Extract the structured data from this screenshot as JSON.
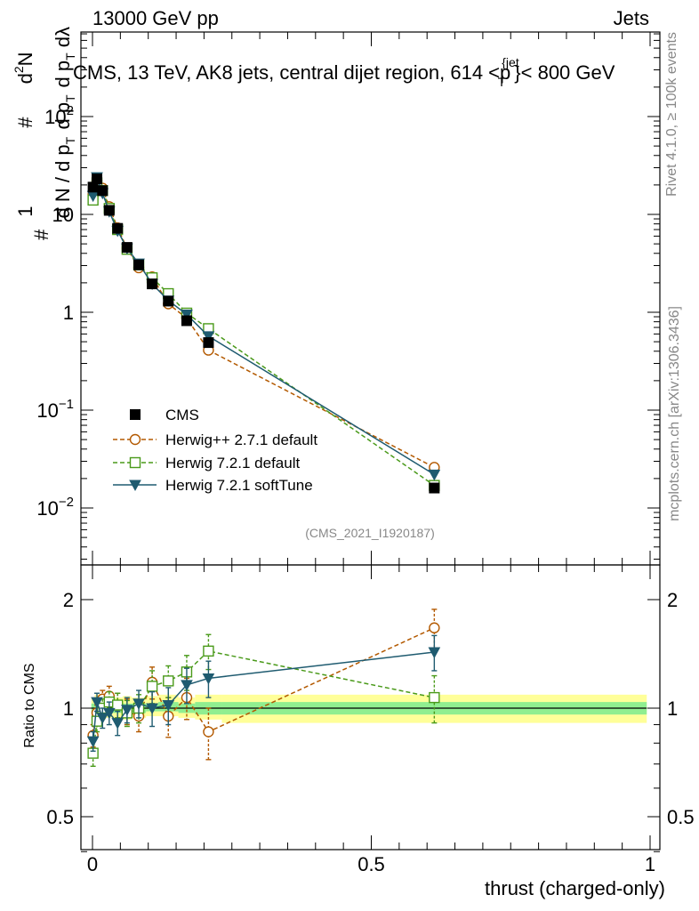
{
  "header": {
    "left": "13000 GeV pp",
    "right": "Jets"
  },
  "side": {
    "rivet": "Rivet 4.1.0, ≥ 100k events",
    "mcplots": "mcplots.cern.ch [arXiv:1306.3436]"
  },
  "colors": {
    "cms": "#000000",
    "herwigpp": "#b35900",
    "herwig721": "#4a9a1a",
    "softtune": "#1f5b70",
    "band_outer": "#ffff99",
    "band_inner": "#90ee90"
  },
  "chart_data": [
    {
      "type": "line",
      "panel": "main",
      "title": "CMS, 13 TeV, AK8 jets, central dijet region, 614 <p_T^{jet}< 800 GeV",
      "ylabel": "1/dN/dp_T dN/dp_T dλ",
      "yscale": "log",
      "ylim": [
        0.003,
        600
      ],
      "xlim": [
        -0.02,
        1.0
      ],
      "xlabel": "thrust (charged-only)",
      "y_ticks": [
        {
          "value": 0.01,
          "base": "10",
          "exp": "−2"
        },
        {
          "value": 0.1,
          "base": "10",
          "exp": "−1"
        },
        {
          "value": 1,
          "base": "1",
          "exp": ""
        },
        {
          "value": 10,
          "base": "10",
          "exp": ""
        },
        {
          "value": 100,
          "base": "10",
          "exp": "2"
        }
      ],
      "analysis_tag": "(CMS_2021_I1920187)",
      "legend_position": "bottom-left",
      "x": [
        0.001,
        0.008,
        0.018,
        0.03,
        0.045,
        0.062,
        0.083,
        0.107,
        0.136,
        0.169,
        0.208,
        0.613
      ],
      "series": [
        {
          "name": "CMS",
          "marker": "filled-square",
          "values": [
            19,
            23,
            17.5,
            11,
            7.2,
            4.6,
            3.05,
            1.95,
            1.3,
            0.82,
            0.49,
            0.016
          ]
        },
        {
          "name": "Herwig++ 2.7.1 default",
          "marker": "open-circle",
          "dashed": true,
          "values": [
            16,
            22,
            18.5,
            12,
            7.3,
            4.5,
            2.85,
            2.3,
            1.22,
            0.87,
            0.41,
            0.026
          ]
        },
        {
          "name": "Herwig 7.2.1 default",
          "marker": "open-square",
          "dashed": true,
          "values": [
            14,
            21,
            17.5,
            11.5,
            7.0,
            4.4,
            3.05,
            2.25,
            1.55,
            0.98,
            0.68,
            0.017
          ]
        },
        {
          "name": "Herwig 7.2.1 softTune",
          "marker": "filled-triangle-down",
          "dashed": false,
          "values": [
            15.5,
            24,
            16.5,
            10.7,
            6.8,
            4.5,
            3.15,
            1.95,
            1.32,
            0.95,
            0.57,
            0.022
          ]
        }
      ]
    },
    {
      "type": "line",
      "panel": "ratio",
      "ylabel": "Ratio to CMS",
      "ylim": [
        0.4,
        2.4
      ],
      "y_ticks": [
        0.5,
        1,
        2
      ],
      "y_tick_labels": [
        "0.5",
        "1",
        "2"
      ],
      "xlim": [
        -0.02,
        1.0
      ],
      "x_ticks": [
        0,
        0.5,
        1
      ],
      "x_tick_labels": [
        "0",
        "0.5",
        "1"
      ],
      "x": [
        0.001,
        0.008,
        0.018,
        0.03,
        0.045,
        0.062,
        0.083,
        0.107,
        0.136,
        0.169,
        0.208,
        0.613
      ],
      "band_edges": [
        -0.002,
        0.004,
        0.012,
        0.024,
        0.036,
        0.054,
        0.07,
        0.096,
        0.118,
        0.154,
        0.184,
        0.232,
        0.994
      ],
      "band_outer": [
        [
          0.93,
          1.07
        ],
        [
          0.92,
          1.09
        ],
        [
          0.93,
          1.08
        ],
        [
          0.94,
          1.07
        ],
        [
          0.93,
          1.07
        ],
        [
          0.93,
          1.08
        ],
        [
          0.94,
          1.07
        ],
        [
          0.95,
          1.08
        ],
        [
          0.95,
          1.09
        ],
        [
          0.94,
          1.07
        ],
        [
          0.93,
          1.09
        ],
        [
          0.91,
          1.09
        ]
      ],
      "band_inner": [
        [
          0.97,
          1.03
        ],
        [
          0.96,
          1.04
        ],
        [
          0.97,
          1.04
        ],
        [
          0.97,
          1.03
        ],
        [
          0.97,
          1.03
        ],
        [
          0.97,
          1.03
        ],
        [
          0.97,
          1.03
        ],
        [
          0.98,
          1.03
        ],
        [
          0.98,
          1.04
        ],
        [
          0.97,
          1.03
        ],
        [
          0.96,
          1.04
        ],
        [
          0.96,
          1.04
        ]
      ],
      "series": [
        {
          "name": "Herwig++ 2.7.1 default",
          "values": [
            0.84,
            0.97,
            1.06,
            1.08,
            1.02,
            0.98,
            0.95,
            1.18,
            0.95,
            1.07,
            0.86,
            1.67
          ],
          "err": [
            0.06,
            0.05,
            0.06,
            0.07,
            0.08,
            0.08,
            0.09,
            0.12,
            0.12,
            0.14,
            0.14,
            0.21
          ]
        },
        {
          "name": "Herwig 7.2.1 default",
          "values": [
            0.75,
            0.92,
            1.0,
            1.04,
            1.02,
            0.97,
            1.0,
            1.15,
            1.19,
            1.26,
            1.44,
            1.07
          ],
          "err": [
            0.06,
            0.06,
            0.06,
            0.07,
            0.08,
            0.08,
            0.09,
            0.12,
            0.12,
            0.14,
            0.16,
            0.16
          ]
        },
        {
          "name": "Herwig 7.2.1 softTune",
          "values": [
            0.81,
            1.04,
            0.94,
            0.97,
            0.91,
            0.99,
            1.03,
            1.0,
            1.02,
            1.16,
            1.21,
            1.43
          ],
          "err": [
            0.05,
            0.06,
            0.06,
            0.07,
            0.07,
            0.08,
            0.09,
            0.11,
            0.12,
            0.13,
            0.14,
            0.16
          ]
        }
      ]
    }
  ]
}
